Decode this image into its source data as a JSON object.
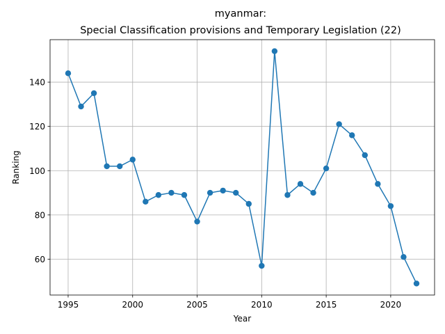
{
  "chart_data": {
    "type": "line",
    "title_line1": "myanmar:",
    "title_line2": "Special Classification provisions and Temporary Legislation (22)",
    "xlabel": "Year",
    "ylabel": "Ranking",
    "x_ticks": [
      1995,
      2000,
      2005,
      2010,
      2015,
      2020
    ],
    "y_ticks": [
      60,
      80,
      100,
      120,
      140
    ],
    "xlim": [
      1993.6,
      2023.4
    ],
    "ylim": [
      43.8,
      159.2
    ],
    "grid": true,
    "color": "#1f77b4",
    "series": [
      {
        "x": [
          1995,
          1996,
          1997,
          1998,
          1999,
          2000,
          2001,
          2002,
          2003,
          2004,
          2005,
          2006,
          2007,
          2008,
          2009,
          2010,
          2011,
          2012,
          2013,
          2014,
          2015,
          2016,
          2017,
          2018,
          2019,
          2020,
          2021,
          2022
        ],
        "y": [
          144,
          129,
          135,
          102,
          102,
          105,
          86,
          89,
          90,
          89,
          77,
          90,
          91,
          90,
          85,
          57,
          154,
          89,
          94,
          90,
          101,
          121,
          116,
          107,
          94,
          84,
          61,
          49
        ]
      }
    ]
  }
}
